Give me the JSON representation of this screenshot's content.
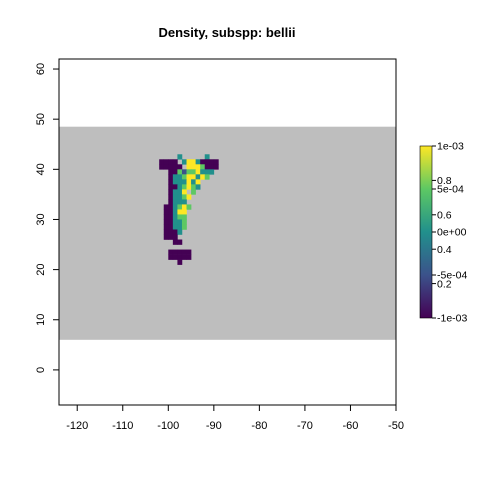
{
  "chart_data": {
    "type": "heatmap",
    "title": "Density, subspp: bellii",
    "xlabel": "",
    "ylabel": "",
    "xlim": [
      -124,
      -50
    ],
    "ylim": [
      -7,
      62
    ],
    "x_ticks": [
      "-120",
      "-110",
      "-100",
      "-90",
      "-80",
      "-70",
      "-60",
      "-50"
    ],
    "y_ticks": [
      "0",
      "10",
      "20",
      "30",
      "40",
      "50",
      "60"
    ],
    "na_band": {
      "lat_min": 6,
      "lat_max": 48.5,
      "color": "#bebebe"
    },
    "cell_size_deg": 1,
    "legend": {
      "position": "right",
      "colors": [
        "#440154",
        "#3b528b",
        "#21908c",
        "#5dc863",
        "#fde725"
      ],
      "labels_a": [
        "1e-03",
        "5e-04",
        "0e+00",
        "-5e-04",
        "-1e-03"
      ],
      "labels_b": [
        "0.8",
        "0.6",
        "0.4",
        "0.2"
      ]
    },
    "density_grid": {
      "x0": -102,
      "y_top": 43,
      "rows": [
        "....2.....2..",
        "0000.24420000",
        "00000.4443000",
        "..0031334222.",
        "..022344243..",
        "..0222424....",
        "..0023432....",
        "..0224.3.....",
        "..02234......",
        "..0222.......",
        ".002343......",
        ".00244.......",
        ".00233.......",
        ".00223.......",
        ".00223.......",
        ".0002........",
        ".000.........",
        "...00........",
        ".............",
        "..00000......",
        "..00000......",
        "....0........"
      ]
    }
  }
}
